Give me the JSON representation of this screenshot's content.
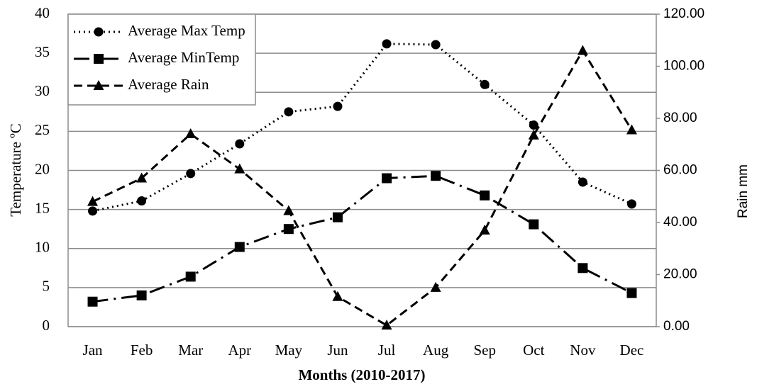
{
  "chart_data": {
    "type": "line",
    "x_label": "Months (2010-2017)",
    "y_label": "Temperature ºC",
    "y2_label": "Rain mm",
    "categories": [
      "Jan",
      "Feb",
      "Mar",
      "Apr",
      "May",
      "Jun",
      "Jul",
      "Aug",
      "Sep",
      "Oct",
      "Nov",
      "Dec"
    ],
    "series": [
      {
        "name": "Average Max Temp",
        "color": "#000000",
        "line_style": "dotted",
        "marker": "circle",
        "values": [
          14.8,
          16.1,
          19.6,
          23.4,
          27.5,
          28.2,
          36.2,
          36.1,
          31.0,
          25.8,
          18.5,
          15.7
        ]
      },
      {
        "name": "Average MinTemp",
        "color": "#000000",
        "line_style": "dashdot",
        "marker": "square",
        "values": [
          3.2,
          4.0,
          6.4,
          10.2,
          12.5,
          14.0,
          19.0,
          19.3,
          16.8,
          13.1,
          7.5,
          4.3
        ]
      },
      {
        "name": "Average Rain",
        "color": "#000000",
        "line_style": "dashed",
        "marker": "triangle",
        "axis": "y2",
        "values": [
          48,
          57,
          74,
          60.5,
          44.5,
          11.5,
          0.5,
          15,
          37,
          73.5,
          106,
          75.5
        ]
      }
    ],
    "ylim": [
      0,
      40
    ],
    "yticks": [
      0,
      5,
      10,
      15,
      20,
      25,
      30,
      35,
      40
    ],
    "y2lim": [
      0,
      120
    ],
    "y2ticks": [
      {
        "value": 0,
        "label": "0.00"
      },
      {
        "value": 20,
        "label": "20.00"
      },
      {
        "value": 40,
        "label": "40.00"
      },
      {
        "value": 60,
        "label": "60.00"
      },
      {
        "value": 80,
        "label": "80.00"
      },
      {
        "value": 100,
        "label": "100.00"
      },
      {
        "value": 120,
        "label": "120.00"
      }
    ],
    "grid": true,
    "legend": "upper left"
  }
}
